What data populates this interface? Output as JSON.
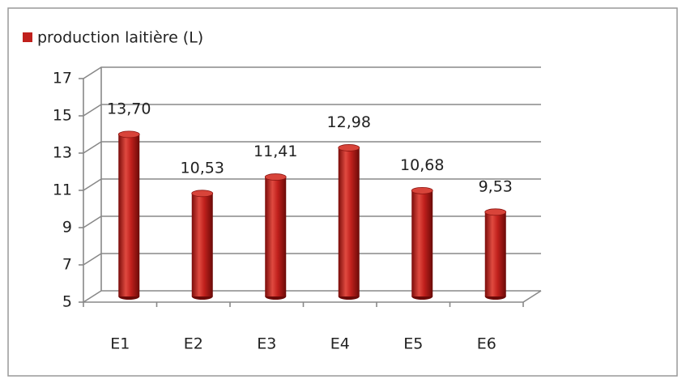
{
  "chart_data": {
    "type": "bar",
    "legend": "production laitière (L)",
    "categories": [
      "E1",
      "E2",
      "E3",
      "E4",
      "E5",
      "E6"
    ],
    "values": [
      13.7,
      10.53,
      11.41,
      12.98,
      10.68,
      9.53
    ],
    "value_labels": [
      "13,70",
      "10,53",
      "11,41",
      "12,98",
      "10,68",
      "9,53"
    ],
    "color": "#c0201c",
    "ylim": [
      5,
      17
    ],
    "yticks": [
      5,
      7,
      9,
      11,
      13,
      15,
      17
    ],
    "grid": true
  }
}
